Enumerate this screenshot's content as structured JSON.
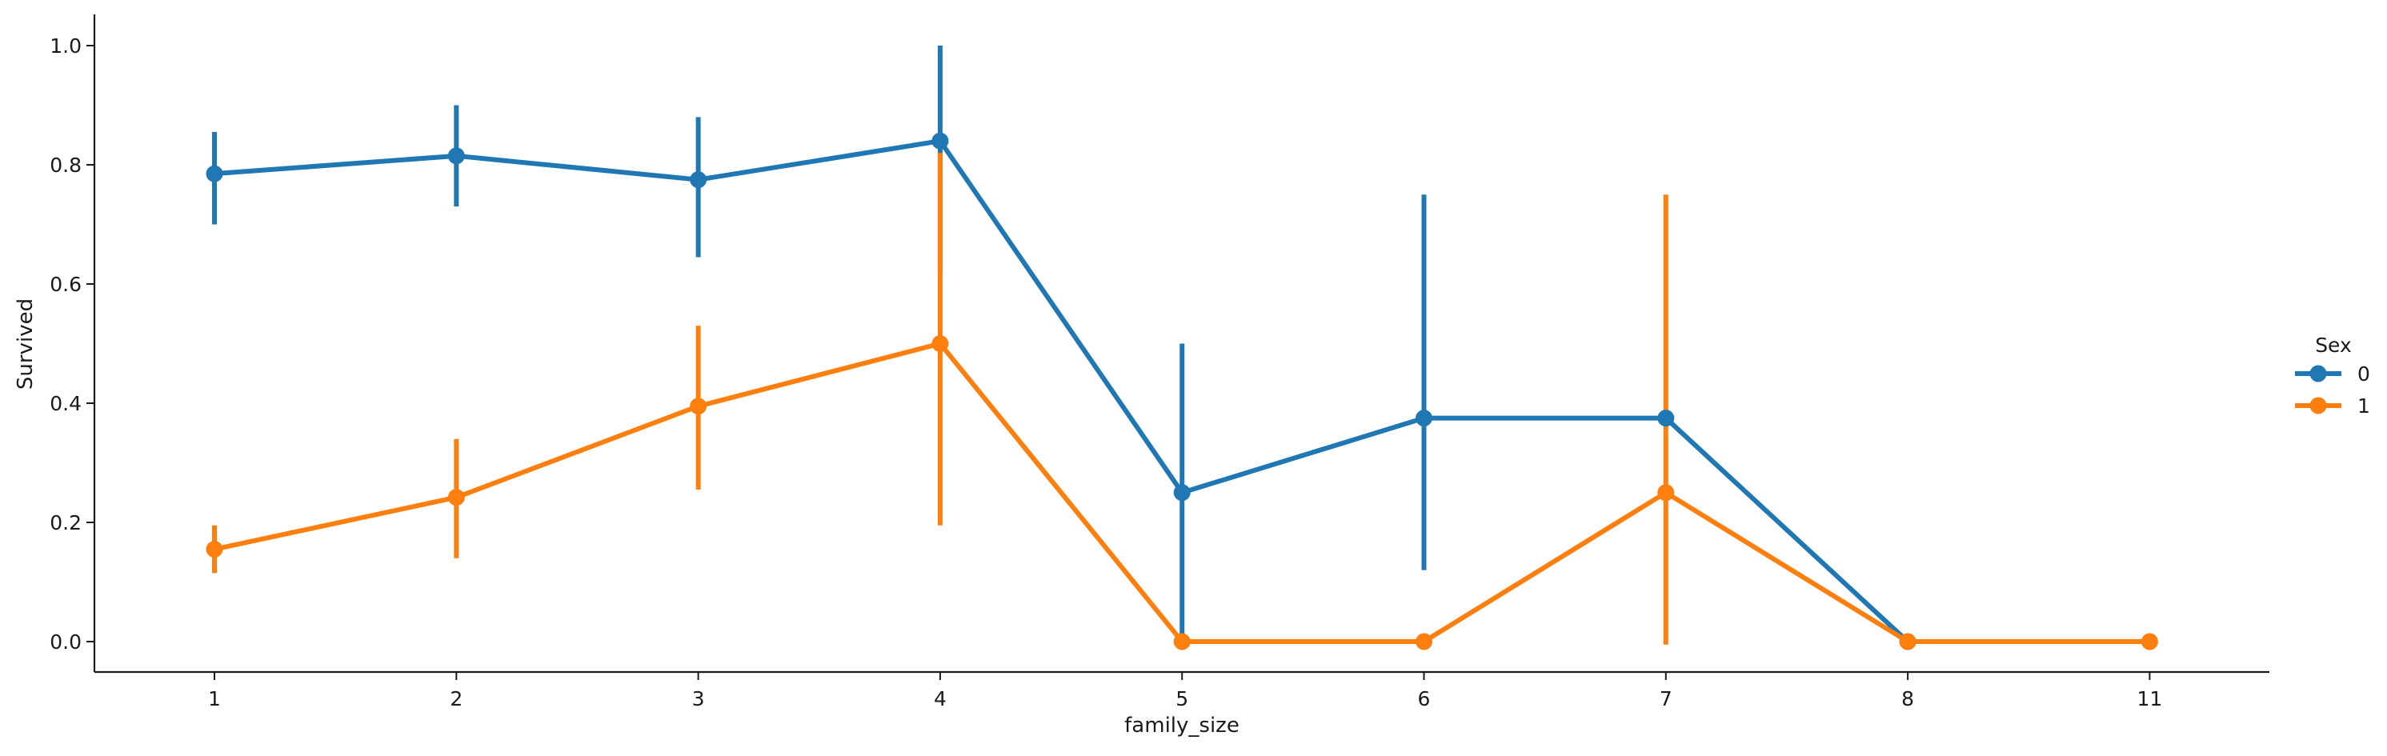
{
  "chart_data": {
    "type": "line",
    "xlabel": "family_size",
    "ylabel": "Survived",
    "categories": [
      "1",
      "2",
      "3",
      "4",
      "5",
      "6",
      "7",
      "8",
      "11"
    ],
    "ylim": [
      -0.05,
      1.05
    ],
    "yticks": [
      0.0,
      0.2,
      0.4,
      0.6,
      0.8,
      1.0
    ],
    "ytick_labels": [
      "0.0",
      "0.2",
      "0.4",
      "0.6",
      "0.8",
      "1.0"
    ],
    "grid": false,
    "legend": {
      "title": "Sex",
      "placement": "right",
      "entries": [
        "0",
        "1"
      ]
    },
    "series": [
      {
        "name": "0",
        "color": "#1f77b4",
        "values": [
          0.785,
          0.815,
          0.775,
          0.84,
          0.25,
          0.375,
          0.375,
          0.0,
          null
        ],
        "ci_low": [
          0.7,
          0.73,
          0.645,
          0.62,
          0.0,
          0.12,
          null,
          null,
          null
        ],
        "ci_high": [
          0.855,
          0.9,
          0.88,
          1.0,
          0.5,
          0.75,
          null,
          null,
          null
        ]
      },
      {
        "name": "1",
        "color": "#ff7f0e",
        "values": [
          0.155,
          0.242,
          0.395,
          0.5,
          0.0,
          0.0,
          0.25,
          0.0,
          0.0
        ],
        "ci_low": [
          0.115,
          0.14,
          0.255,
          0.195,
          null,
          null,
          -0.005,
          null,
          null
        ],
        "ci_high": [
          0.195,
          0.34,
          0.53,
          0.82,
          null,
          null,
          0.75,
          null,
          null
        ]
      }
    ]
  }
}
